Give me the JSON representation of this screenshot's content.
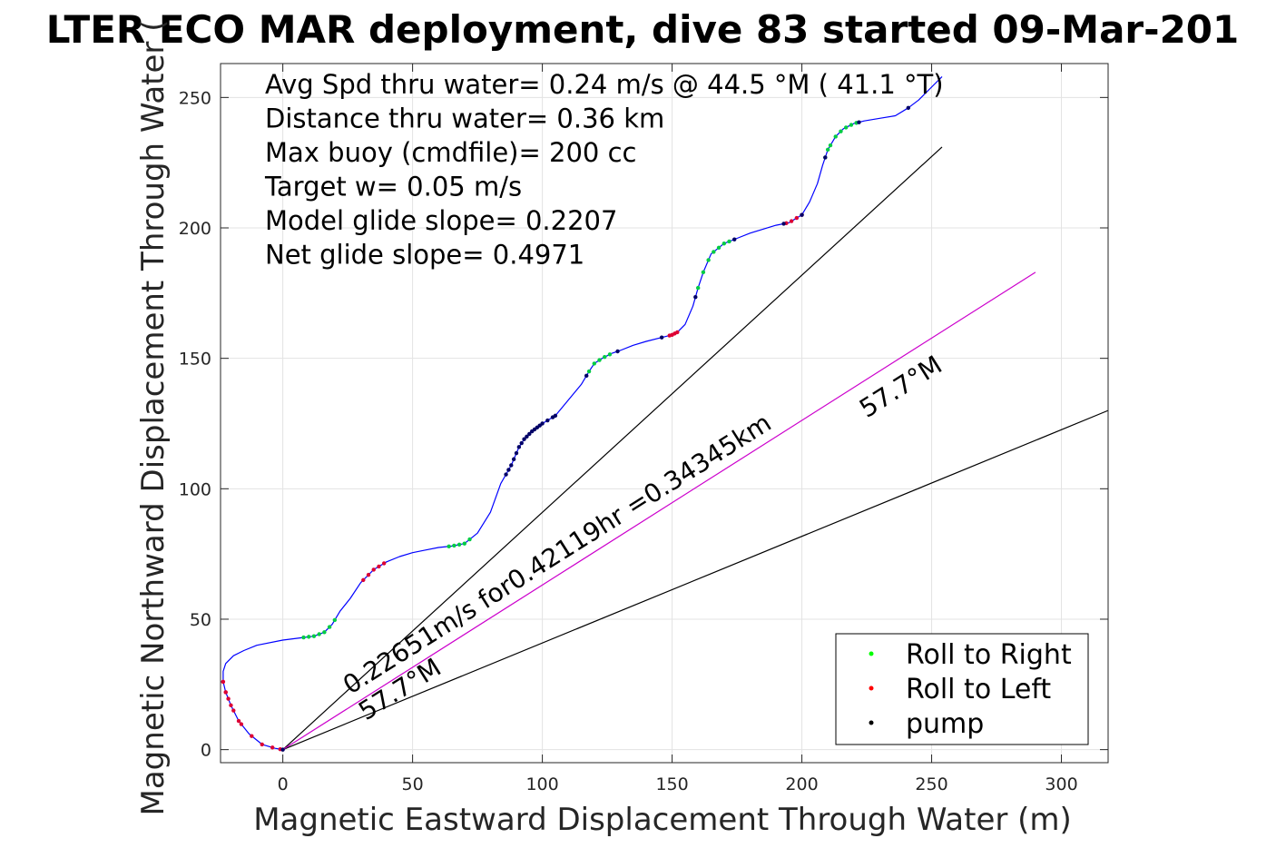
{
  "chart_data": {
    "type": "scatter",
    "title": "LTER ECO MAR deployment, dive 83 started 09-Mar-201",
    "xlabel": "Magnetic Eastward Displacement Through Water (m)",
    "ylabel": "Magnetic Northward Displacement Through Water (",
    "xlim": [
      -24,
      318
    ],
    "ylim": [
      -5,
      263
    ],
    "xticks": [
      0,
      50,
      100,
      150,
      200,
      250,
      300
    ],
    "yticks": [
      0,
      50,
      100,
      150,
      200,
      250
    ],
    "grid": true,
    "info_lines": [
      "Avg Spd thru water=  0.24 m/s @  44.5 °M ( 41.1 °T)",
      "Distance thru water=  0.36 km",
      "Max buoy (cmdfile)= 200 cc",
      "Target w= 0.05 m/s",
      "Model glide slope= 0.2207",
      "Net glide slope= 0.4971"
    ],
    "annotations": [
      {
        "text": "0.22651m/s for0.42119hr =0.34345km",
        "x": 26,
        "y": 21,
        "angle_deg": 32.3
      },
      {
        "text": "57.7°M",
        "x": 32,
        "y": 11,
        "angle_deg": 32.3
      },
      {
        "text": "57.7°M",
        "x": 225,
        "y": 127,
        "angle_deg": 32.3
      }
    ],
    "reference_lines": [
      {
        "name": "track-line-1",
        "x": [
          0,
          254
        ],
        "y": [
          0,
          231
        ],
        "color": "#000000"
      },
      {
        "name": "track-line-2",
        "x": [
          0,
          318
        ],
        "y": [
          0,
          130
        ],
        "color": "#000000"
      },
      {
        "name": "current-line",
        "x": [
          0,
          290
        ],
        "y": [
          0,
          183
        ],
        "color": "#cc00cc"
      }
    ],
    "track": {
      "name": "glider-track",
      "color": "#0000ff",
      "x": [
        0,
        -3,
        -8,
        -13,
        -17,
        -20,
        -22,
        -23,
        -23,
        -22,
        -19,
        -15,
        -10,
        0,
        8,
        12,
        16,
        19,
        22,
        26,
        30,
        35,
        40,
        45,
        50,
        55,
        60,
        65,
        70,
        75,
        80,
        84,
        88,
        91,
        93,
        96,
        100,
        105,
        110,
        115,
        118,
        120,
        123,
        127,
        130,
        135,
        140,
        146,
        150,
        152,
        155,
        158,
        160,
        162,
        165,
        170,
        175,
        180,
        185,
        190,
        195,
        200,
        203,
        206,
        208,
        210,
        213,
        216,
        220,
        224,
        230,
        236,
        241,
        245,
        248,
        251,
        254
      ],
      "y": [
        0,
        0.5,
        2,
        6,
        11,
        17,
        22,
        26,
        30,
        33,
        36,
        38,
        40,
        42,
        43,
        43.5,
        45,
        48,
        53,
        58,
        64,
        69,
        72,
        74,
        75.5,
        76.5,
        77.5,
        78,
        79,
        83,
        91,
        102,
        109,
        116,
        119,
        122,
        125,
        128,
        134,
        140,
        145,
        148,
        150,
        152,
        153,
        155,
        156.5,
        158,
        159,
        160,
        163,
        170,
        177,
        183,
        190,
        194,
        196,
        198,
        199.5,
        201,
        202,
        205,
        210,
        217,
        224,
        230,
        235,
        238,
        240,
        241,
        242,
        243,
        246,
        249,
        252,
        255,
        258
      ]
    },
    "segments": [
      {
        "type": "right",
        "x": [
          8,
          10,
          12,
          14,
          16,
          18,
          20,
          64,
          66,
          68,
          70,
          72,
          118,
          120,
          122,
          124,
          126,
          160,
          162,
          164,
          166,
          168,
          170,
          172,
          209,
          210,
          211,
          213,
          215,
          217,
          219,
          221
        ]
      },
      {
        "type": "left",
        "x": [
          -1,
          -4,
          -8,
          -12,
          -16,
          -19,
          -21,
          -22,
          -23,
          -23,
          -22,
          -20,
          -17,
          31,
          33,
          35,
          37,
          39,
          149,
          150,
          151,
          152,
          194,
          196,
          198,
          200
        ]
      },
      {
        "type": "pump",
        "x": [
          0,
          86,
          87,
          88,
          89,
          90,
          91,
          92,
          93,
          94,
          95,
          96,
          97,
          98,
          99,
          100,
          102,
          104,
          105,
          117,
          129,
          146,
          159,
          174,
          193,
          200,
          209,
          222,
          241
        ]
      }
    ],
    "legend": {
      "placement": "bottom-right",
      "entries": [
        {
          "label": "Roll to Right",
          "color": "#00ff00"
        },
        {
          "label": "Roll to Left",
          "color": "#ff0000"
        },
        {
          "label": "pump",
          "color": "#000000"
        }
      ]
    }
  }
}
